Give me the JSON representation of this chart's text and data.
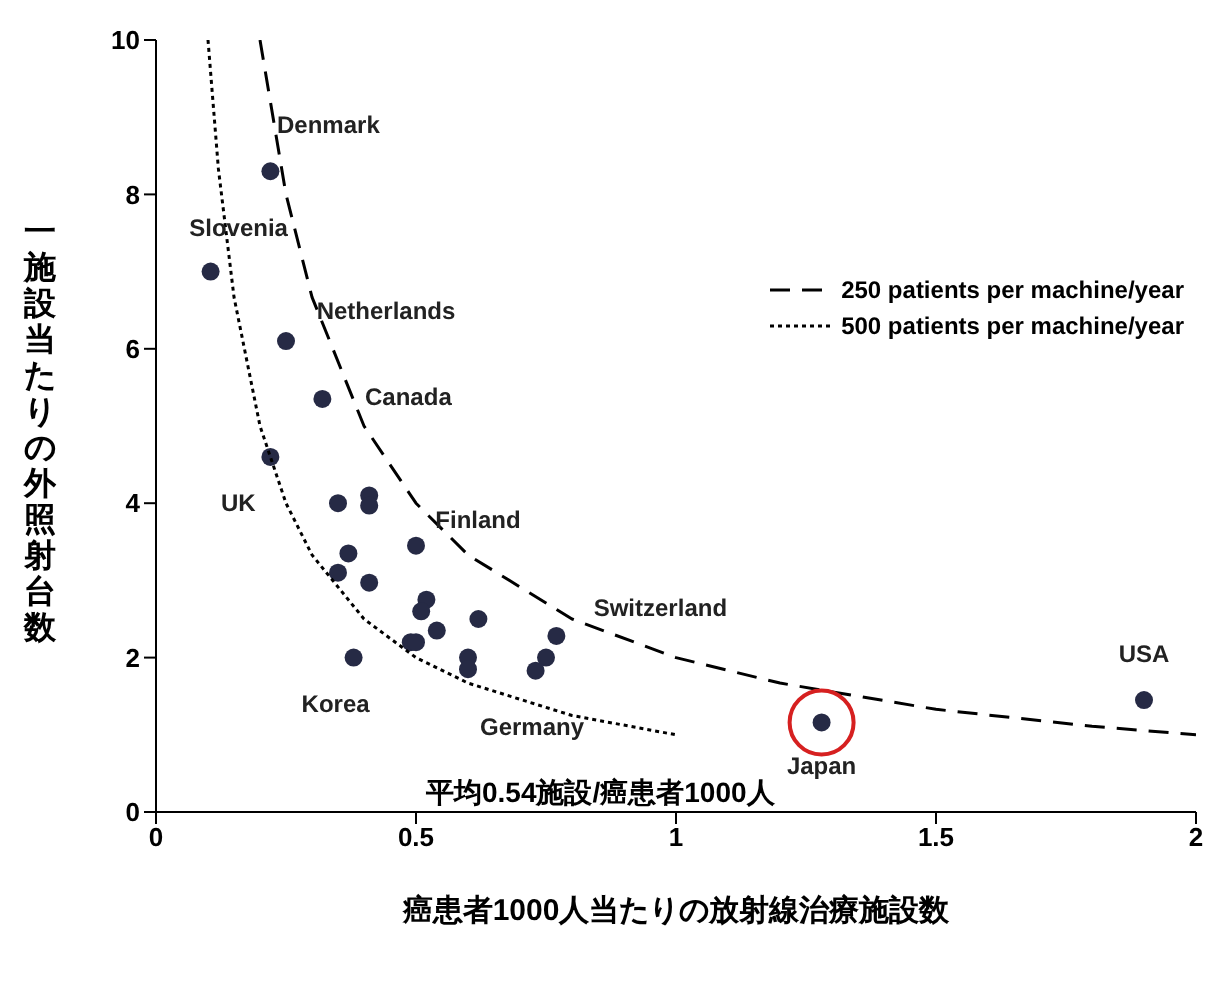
{
  "chart_data": {
    "type": "scatter",
    "xlabel": "癌患者1000人当たりの放射線治療施設数",
    "ylabel": "一施設当たりの外照射台数",
    "xlim": [
      0,
      2
    ],
    "xticks": [
      0,
      0.5,
      1,
      1.5,
      2
    ],
    "ylim": [
      0,
      10
    ],
    "yticks": [
      0,
      2,
      4,
      6,
      8,
      10
    ],
    "grid": false,
    "legend": "top right",
    "series": [
      {
        "type": "scatter",
        "color": "#262a45",
        "marker": "circle",
        "x": [
          0.22,
          0.105,
          0.25,
          0.32,
          0.22,
          0.35,
          0.41,
          0.41,
          0.5,
          0.37,
          0.35,
          0.41,
          0.52,
          0.51,
          0.62,
          0.54,
          0.49,
          0.5,
          0.6,
          0.6,
          0.38,
          0.77,
          0.75,
          0.73,
          1.28,
          1.9
        ],
        "values": [
          8.3,
          7.0,
          6.1,
          5.35,
          4.6,
          4.0,
          4.1,
          3.97,
          3.45,
          3.35,
          3.1,
          2.97,
          2.75,
          2.6,
          2.5,
          2.35,
          2.2,
          2.2,
          2.0,
          1.85,
          2.0,
          2.28,
          2.0,
          1.83,
          1.16,
          1.45
        ]
      },
      {
        "type": "line",
        "name": "250 patients per machine/year",
        "color": "#000000",
        "line_style": "dashed",
        "marker": "none",
        "x": [
          0.2,
          0.25,
          0.3,
          0.4,
          0.5,
          0.6,
          0.8,
          1,
          1.2,
          1.5,
          1.8,
          2
        ],
        "values": [
          10,
          8,
          6.67,
          5,
          4,
          3.33,
          2.5,
          2,
          1.67,
          1.33,
          1.11,
          1
        ]
      },
      {
        "type": "line",
        "name": "500 patients per machine/year",
        "color": "#000000",
        "line_style": "dotted",
        "marker": "none",
        "x": [
          0.1,
          0.12,
          0.15,
          0.2,
          0.25,
          0.3,
          0.4,
          0.5,
          0.6,
          0.8,
          1
        ],
        "values": [
          10,
          8.33,
          6.67,
          5,
          4,
          3.33,
          2.5,
          2,
          1.67,
          1.25,
          1
        ]
      }
    ],
    "annotations": [
      {
        "text": "Denmark",
        "x": 0.22,
        "y": 8.3
      },
      {
        "text": "Slovenia",
        "x": 0.105,
        "y": 7.0
      },
      {
        "text": "Netherlands",
        "x": 0.25,
        "y": 6.1
      },
      {
        "text": "Canada",
        "x": 0.32,
        "y": 5.35
      },
      {
        "text": "UK",
        "x": 0.22,
        "y": 4.6
      },
      {
        "text": "Finland",
        "x": 0.5,
        "y": 3.45
      },
      {
        "text": "Switzerland",
        "x": 0.77,
        "y": 2.28
      },
      {
        "text": "Korea",
        "x": 0.38,
        "y": 2.0
      },
      {
        "text": "Germany",
        "x": 0.6,
        "y": 1.85
      },
      {
        "text": "Japan",
        "x": 1.28,
        "y": 1.16
      },
      {
        "text": "USA",
        "x": 1.9,
        "y": 1.45
      },
      "平均0.54施設/癌患者1000人"
    ]
  }
}
